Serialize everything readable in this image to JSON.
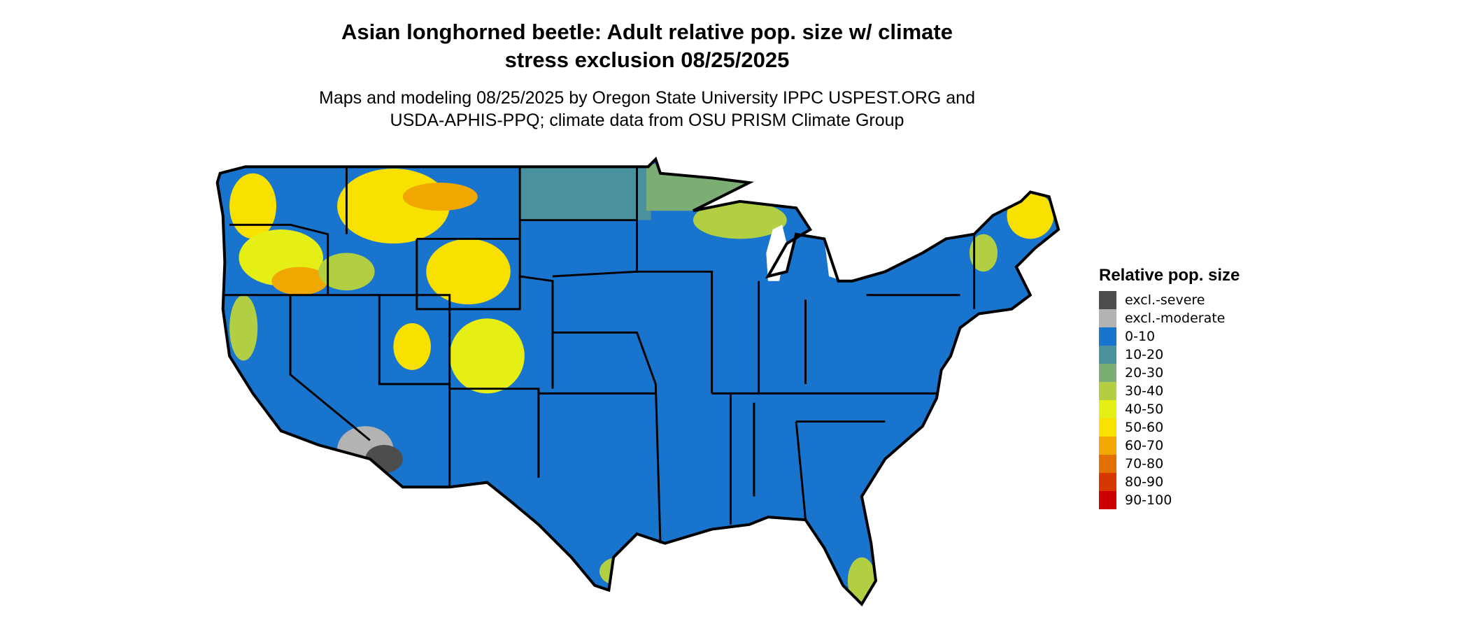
{
  "title_line1": "Asian longhorned beetle: Adult relative pop. size w/ climate",
  "title_line2": "stress exclusion 08/25/2025",
  "subtitle_line1": "Maps and modeling 08/25/2025 by Oregon State University IPPC USPEST.ORG and",
  "subtitle_line2": "USDA-APHIS-PPQ; climate data from OSU PRISM Climate Group",
  "legend": {
    "title": "Relative pop. size",
    "items": [
      {
        "label": "excl.-severe",
        "color": "#4d4d4d"
      },
      {
        "label": "excl.-moderate",
        "color": "#b3b3b3"
      },
      {
        "label": "0-10",
        "color": "#1874cd"
      },
      {
        "label": "10-20",
        "color": "#4a919e"
      },
      {
        "label": "20-30",
        "color": "#7bad74"
      },
      {
        "label": "30-40",
        "color": "#b2cf44"
      },
      {
        "label": "40-50",
        "color": "#e5ef16"
      },
      {
        "label": "50-60",
        "color": "#f8e000"
      },
      {
        "label": "60-70",
        "color": "#f0a800"
      },
      {
        "label": "70-80",
        "color": "#e47000"
      },
      {
        "label": "80-90",
        "color": "#d83800"
      },
      {
        "label": "90-100",
        "color": "#cc0000"
      }
    ]
  },
  "map": {
    "region": "Contiguous United States",
    "dominant_class": "0-10",
    "excluded_area": "southwest desert (Arizona/California)"
  }
}
